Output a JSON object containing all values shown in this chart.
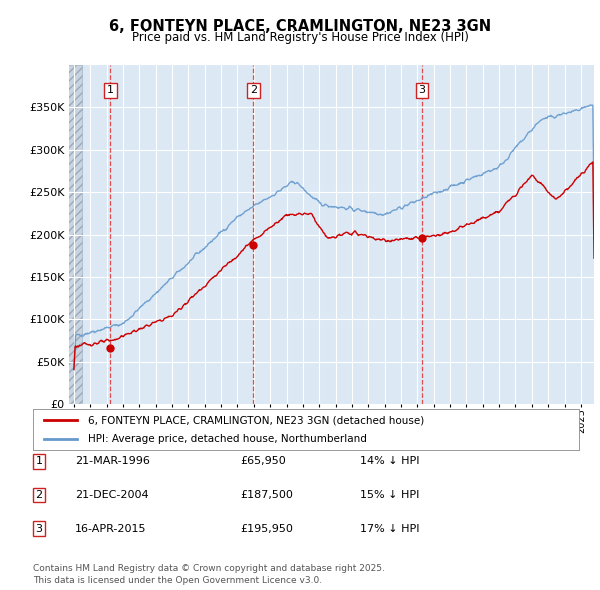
{
  "title_line1": "6, FONTEYN PLACE, CRAMLINGTON, NE23 3GN",
  "title_line2": "Price paid vs. HM Land Registry's House Price Index (HPI)",
  "background_color": "#dce9f5",
  "plot_bg_color": "#dce9f5",
  "ylim": [
    0,
    400000
  ],
  "yticks": [
    0,
    50000,
    100000,
    150000,
    200000,
    250000,
    300000,
    350000
  ],
  "ytick_labels": [
    "£0",
    "£50K",
    "£100K",
    "£150K",
    "£200K",
    "£250K",
    "£300K",
    "£350K"
  ],
  "xmin": 1994.0,
  "xmax": 2025.8,
  "sale_dates": [
    "1996-03-21",
    "2004-12-21",
    "2015-04-16"
  ],
  "sale_prices": [
    65950,
    187500,
    195950
  ],
  "sale_labels": [
    "1",
    "2",
    "3"
  ],
  "legend_line1": "6, FONTEYN PLACE, CRAMLINGTON, NE23 3GN (detached house)",
  "legend_line2": "HPI: Average price, detached house, Northumberland",
  "table_data": [
    [
      "1",
      "21-MAR-1996",
      "£65,950",
      "14% ↓ HPI"
    ],
    [
      "2",
      "21-DEC-2004",
      "£187,500",
      "15% ↓ HPI"
    ],
    [
      "3",
      "16-APR-2015",
      "£195,950",
      "17% ↓ HPI"
    ]
  ],
  "footnote": "Contains HM Land Registry data © Crown copyright and database right 2025.\nThis data is licensed under the Open Government Licence v3.0.",
  "red_line_color": "#cc0000",
  "blue_line_color": "#6699cc",
  "marker_color": "#cc0000",
  "dashed_line_color": "#cc3333"
}
